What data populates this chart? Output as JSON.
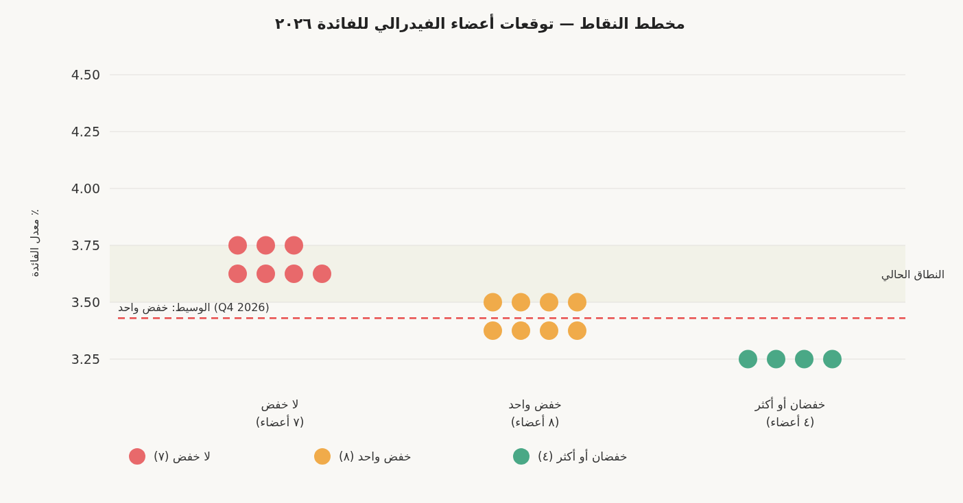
{
  "chart_data": {
    "type": "scatter",
    "title": "مخطط النقاط — توقعات أعضاء الفيدرالي للفائدة ٢٠٢٦",
    "ylabel": "٪ معدل الفائدة",
    "categories": [
      "لا خفض\n(٧ أعضاء)",
      "خفض واحد\n(٨ أعضاء)",
      "خفضان أو أكثر\n(٤ أعضاء)"
    ],
    "series": [
      {
        "name": "لا خفض (٧)",
        "color": "#e8696b",
        "x": [
          "لا خفض\n(٧ أعضاء)",
          "لا خفض\n(٧ أعضاء)",
          "لا خفض\n(٧ أعضاء)",
          "لا خفض\n(٧ أعضاء)",
          "لا خفض\n(٧ أعضاء)",
          "لا خفض\n(٧ أعضاء)",
          "لا خفض\n(٧ أعضاء)"
        ],
        "values": [
          3.75,
          3.75,
          3.75,
          3.625,
          3.625,
          3.625,
          3.625
        ]
      },
      {
        "name": "خفض واحد (٨)",
        "color": "#f0ab4a",
        "x": [
          "خفض واحد\n(٨ أعضاء)",
          "خفض واحد\n(٨ أعضاء)",
          "خفض واحد\n(٨ أعضاء)",
          "خفض واحد\n(٨ أعضاء)",
          "خفض واحد\n(٨ أعضاء)",
          "خفض واحد\n(٨ أعضاء)",
          "خفض واحد\n(٨ أعضاء)",
          "خفض واحد\n(٨ أعضاء)"
        ],
        "values": [
          3.5,
          3.5,
          3.5,
          3.5,
          3.375,
          3.375,
          3.375,
          3.375
        ]
      },
      {
        "name": "خفضان أو أكثر (٤)",
        "color": "#4aa886",
        "x": [
          "خفضان أو أكثر\n(٤ أعضاء)",
          "خفضان أو أكثر\n(٤ أعضاء)",
          "خفضان أو أكثر\n(٤ أعضاء)",
          "خفضان أو أكثر\n(٤ أعضاء)"
        ],
        "values": [
          3.25,
          3.25,
          3.25,
          3.25
        ]
      }
    ],
    "ylim": [
      3.25,
      4.5
    ],
    "yticks": [
      {
        "value": 3.25,
        "label": "3.25"
      },
      {
        "value": 3.5,
        "label": "3.50"
      },
      {
        "value": 3.75,
        "label": "3.75"
      },
      {
        "value": 4.0,
        "label": "4.00"
      },
      {
        "value": 4.25,
        "label": "4.25"
      },
      {
        "value": 4.5,
        "label": "4.50"
      }
    ],
    "ref_lines": [
      {
        "axis": "y",
        "value": 3.43,
        "label": "الوسيط: خفض واحد (Q4 2026)",
        "color": "#e84c4c",
        "line_style": "dashed"
      }
    ],
    "bands": [
      {
        "axis": "y",
        "from": 3.5,
        "to": 3.75,
        "label": "النطاق الحالي",
        "color": "#f2f2e8"
      }
    ],
    "grid": "y",
    "legend": "bottom",
    "marker": "circle"
  }
}
